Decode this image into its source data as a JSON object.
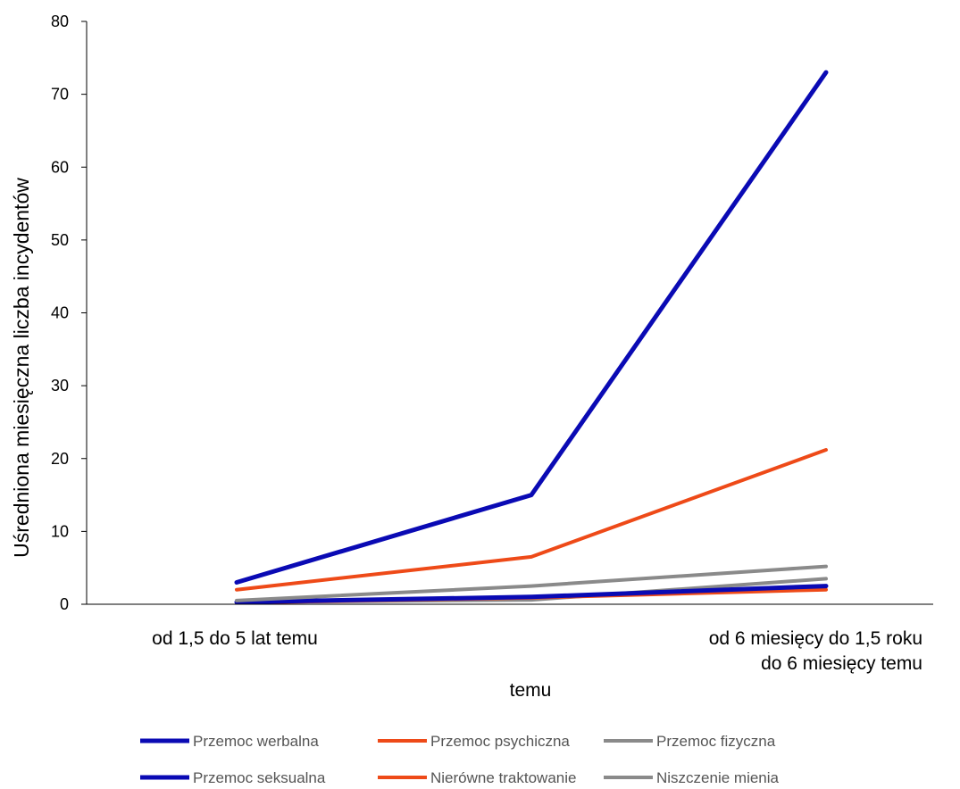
{
  "chart_data": {
    "type": "line",
    "ylabel": "Uśredniona miesięczna liczba incydentów",
    "xlabel_lines": [
      "od 6 miesięcy do 1,5 roku",
      "do 6 miesięcy temu",
      "temu"
    ],
    "category_labels": [
      "od 1,5 do 5 lat temu",
      "",
      ""
    ],
    "categories_count": 3,
    "ylim": [
      0,
      80
    ],
    "yticks": [
      0,
      10,
      20,
      30,
      40,
      50,
      60,
      70,
      80
    ],
    "grid": false,
    "legend_position": "bottom",
    "series": [
      {
        "name": "Przemoc werbalna",
        "color": "#0a0ab4",
        "width": 5,
        "values": [
          3.0,
          15.0,
          73.0
        ]
      },
      {
        "name": "Przemoc psychiczna",
        "color": "#ee4a18",
        "width": 4,
        "values": [
          2.0,
          6.5,
          21.2
        ]
      },
      {
        "name": "Przemoc fizyczna",
        "color": "#8a8a8a",
        "width": 4,
        "values": [
          0.5,
          2.5,
          5.2
        ]
      },
      {
        "name": "Przemoc seksualna",
        "color": "#0a0ab4",
        "width": 5,
        "values": [
          0.3,
          1.0,
          2.5
        ]
      },
      {
        "name": "Nierówne traktowanie",
        "color": "#ee4a18",
        "width": 4,
        "values": [
          0.2,
          0.9,
          2.0
        ]
      },
      {
        "name": "Niszczenie mienia",
        "color": "#8a8a8a",
        "width": 4,
        "values": [
          0.3,
          0.6,
          3.5
        ]
      }
    ]
  }
}
